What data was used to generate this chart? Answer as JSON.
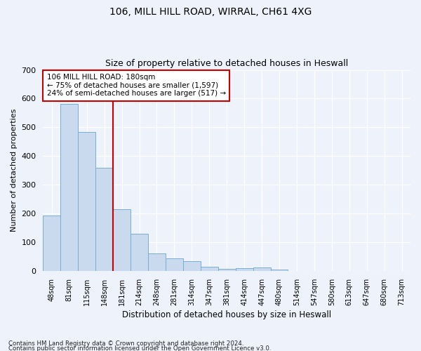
{
  "title_line1": "106, MILL HILL ROAD, WIRRAL, CH61 4XG",
  "title_line2": "Size of property relative to detached houses in Heswall",
  "xlabel": "Distribution of detached houses by size in Heswall",
  "ylabel": "Number of detached properties",
  "footer_line1": "Contains HM Land Registry data © Crown copyright and database right 2024.",
  "footer_line2": "Contains public sector information licensed under the Open Government Licence v3.0.",
  "bar_labels": [
    "48sqm",
    "81sqm",
    "115sqm",
    "148sqm",
    "181sqm",
    "214sqm",
    "248sqm",
    "281sqm",
    "314sqm",
    "347sqm",
    "381sqm",
    "414sqm",
    "447sqm",
    "480sqm",
    "514sqm",
    "547sqm",
    "580sqm",
    "613sqm",
    "647sqm",
    "680sqm",
    "713sqm"
  ],
  "bar_values": [
    193,
    582,
    483,
    358,
    216,
    130,
    62,
    45,
    33,
    15,
    8,
    10,
    11,
    6,
    0,
    0,
    0,
    0,
    0,
    0,
    0
  ],
  "bar_color": "#c9d9ee",
  "bar_edge_color": "#7aadd4",
  "annotation_title": "106 MILL HILL ROAD: 180sqm",
  "annotation_line1": "← 75% of detached houses are smaller (1,597)",
  "annotation_line2": "24% of semi-detached houses are larger (517) →",
  "annotation_box_color": "#ffffff",
  "annotation_box_edge": "#cc0000",
  "vline_color": "#cc0000",
  "vline_x_index": 4,
  "background_color": "#eef2fa",
  "ylim": [
    0,
    700
  ],
  "yticks": [
    0,
    100,
    200,
    300,
    400,
    500,
    600,
    700
  ]
}
